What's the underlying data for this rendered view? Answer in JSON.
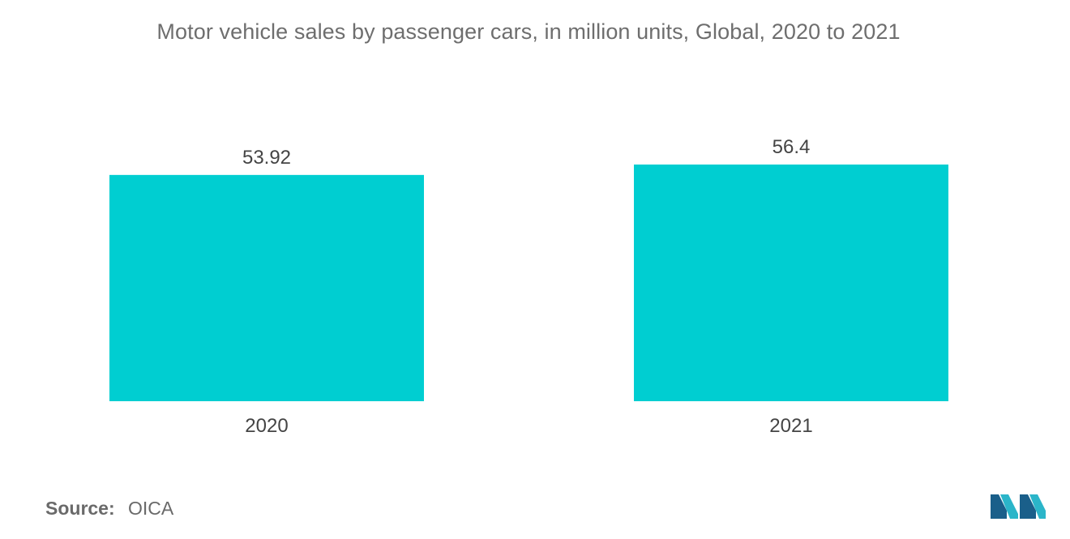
{
  "chart_data": {
    "type": "bar",
    "title": "Motor vehicle sales by passenger cars, in million units, Global,  2020 to 2021",
    "categories": [
      "2020",
      "2021"
    ],
    "values": [
      53.92,
      56.4
    ],
    "data_labels": [
      "53.92",
      "56.4"
    ],
    "xlabel": "",
    "ylabel": "",
    "ylim": [
      0,
      56.4
    ],
    "grid": false,
    "legend": "none",
    "bar_color": "#00ced1"
  },
  "source": {
    "label": "Source:",
    "value": "OICA"
  },
  "logo": {
    "icon": "mordor-intelligence-logo-icon",
    "colors": [
      "#1a5f8a",
      "#2bb5c9"
    ]
  }
}
